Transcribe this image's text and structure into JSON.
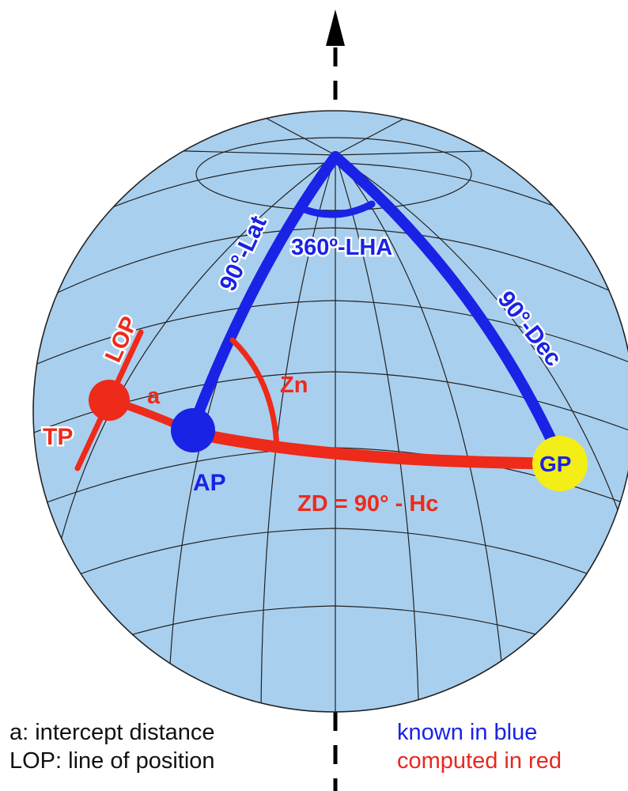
{
  "colors": {
    "sphere_fill": "#a9cfee",
    "grid": "#222222",
    "known": "#1a22e6",
    "computed": "#ee2a1a",
    "gp_fill": "#f2ee16",
    "axis": "#000000"
  },
  "labels": {
    "lat": "90°-Lat",
    "lha": "360º-LHA",
    "dec": "90°-Dec",
    "zn": "Zn",
    "a": "a",
    "lop": "LOP",
    "tp": "TP",
    "ap": "AP",
    "gp": "GP",
    "zd": "ZD = 90° - Hc"
  },
  "legend": {
    "intercept": "a: intercept distance",
    "lop": "LOP: line of position",
    "known": "known in blue",
    "computed": "computed in red"
  }
}
